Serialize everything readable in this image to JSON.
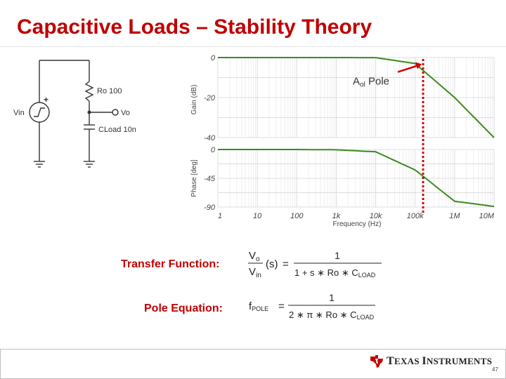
{
  "slide": {
    "title": "Capacitive Loads – Stability Theory",
    "page_number": "47"
  },
  "circuit": {
    "vin_label": "Vin",
    "plus_sign": "+",
    "ro_label": "Ro 100",
    "vo_label": "Vo",
    "cload_label": "CLoad 10n"
  },
  "chart_data": [
    {
      "type": "line",
      "title": "",
      "ylabel": "Gain (dB)",
      "xlabel": "",
      "ylim": [
        -40,
        0
      ],
      "y_ticks": [
        "0",
        "-20",
        "-40"
      ],
      "x_scale": "log",
      "xlim": [
        1,
        10000000
      ],
      "x": [
        1,
        10,
        100,
        1000,
        10000,
        100000,
        1000000,
        10000000
      ],
      "series": [
        {
          "values": [
            0,
            0,
            0,
            0,
            -0.04,
            -3,
            -20,
            -40
          ]
        }
      ],
      "annotation": {
        "text_main": "A",
        "text_sub": "ol",
        "text_rest": " Pole",
        "at_frequency": 159000
      },
      "grid": true
    },
    {
      "type": "line",
      "title": "",
      "ylabel": "Phase [deg]",
      "xlabel": "Frequency (Hz)",
      "ylim": [
        -90,
        0
      ],
      "y_ticks": [
        "0",
        "-45",
        "-90"
      ],
      "x_scale": "log",
      "xlim": [
        1,
        10000000
      ],
      "x_tick_labels": [
        "1",
        "10",
        "100",
        "1k",
        "10k",
        "100k",
        "1M",
        "10M"
      ],
      "x": [
        1,
        10,
        100,
        1000,
        10000,
        100000,
        1000000,
        10000000
      ],
      "series": [
        {
          "values": [
            0,
            0,
            -0.04,
            -0.4,
            -3.6,
            -32,
            -81,
            -89
          ]
        }
      ],
      "grid": true
    }
  ],
  "equations": {
    "transfer_label": "Transfer Function:",
    "pole_label": "Pole Equation:",
    "tf_lhs_top": "V",
    "tf_lhs_top_sub": "o",
    "tf_lhs_bot": "V",
    "tf_lhs_bot_sub": "in",
    "tf_s": "(s)",
    "eq": "=",
    "one": "1",
    "tf_den": "1 + s ∗ Ro ∗ C",
    "load_sub": "LOAD",
    "pole_lhs": "f",
    "pole_lhs_sub": "POLE",
    "pole_den": "2 ∗ π ∗ Ro ∗ C"
  },
  "footer": {
    "company": "Texas Instruments",
    "company_big_t": "T",
    "company_exas": "EXAS ",
    "company_big_i": "I",
    "company_nstruments": "NSTRUMENTS"
  }
}
